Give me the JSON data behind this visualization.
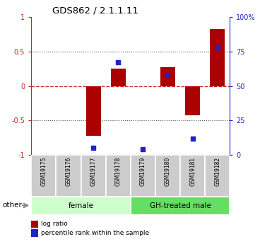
{
  "title": "GDS862 / 2.1.1.11",
  "samples": [
    "GSM19175",
    "GSM19176",
    "GSM19177",
    "GSM19178",
    "GSM19179",
    "GSM19180",
    "GSM19181",
    "GSM19182"
  ],
  "log_ratio": [
    0.0,
    0.0,
    -0.72,
    0.25,
    0.0,
    0.27,
    -0.42,
    0.83
  ],
  "percentile_rank": [
    null,
    null,
    5,
    67,
    4,
    58,
    12,
    78
  ],
  "groups": [
    {
      "label": "female",
      "start": 0,
      "end": 4,
      "color": "#ccffcc"
    },
    {
      "label": "GH-treated male",
      "start": 4,
      "end": 8,
      "color": "#66dd66"
    }
  ],
  "ylim_left": [
    -1,
    1
  ],
  "ylim_right": [
    0,
    100
  ],
  "yticks_left": [
    -1,
    -0.5,
    0,
    0.5,
    1
  ],
  "ytick_labels_left": [
    "-1",
    "-0.5",
    "0",
    "0.5",
    "1"
  ],
  "yticks_right": [
    0,
    25,
    50,
    75,
    100
  ],
  "ytick_labels_right": [
    "0",
    "25",
    "50",
    "75",
    "100%"
  ],
  "bar_color": "#aa0000",
  "dot_color": "#2222cc",
  "zero_line_color": "#cc2222",
  "dotted_line_color": "#555555",
  "left_label_color": "#cc2222",
  "right_label_color": "#2222cc",
  "legend_bar_label": "log ratio",
  "legend_dot_label": "percentile rank within the sample",
  "other_label": "other",
  "sample_box_color": "#cccccc",
  "bar_width": 0.6
}
